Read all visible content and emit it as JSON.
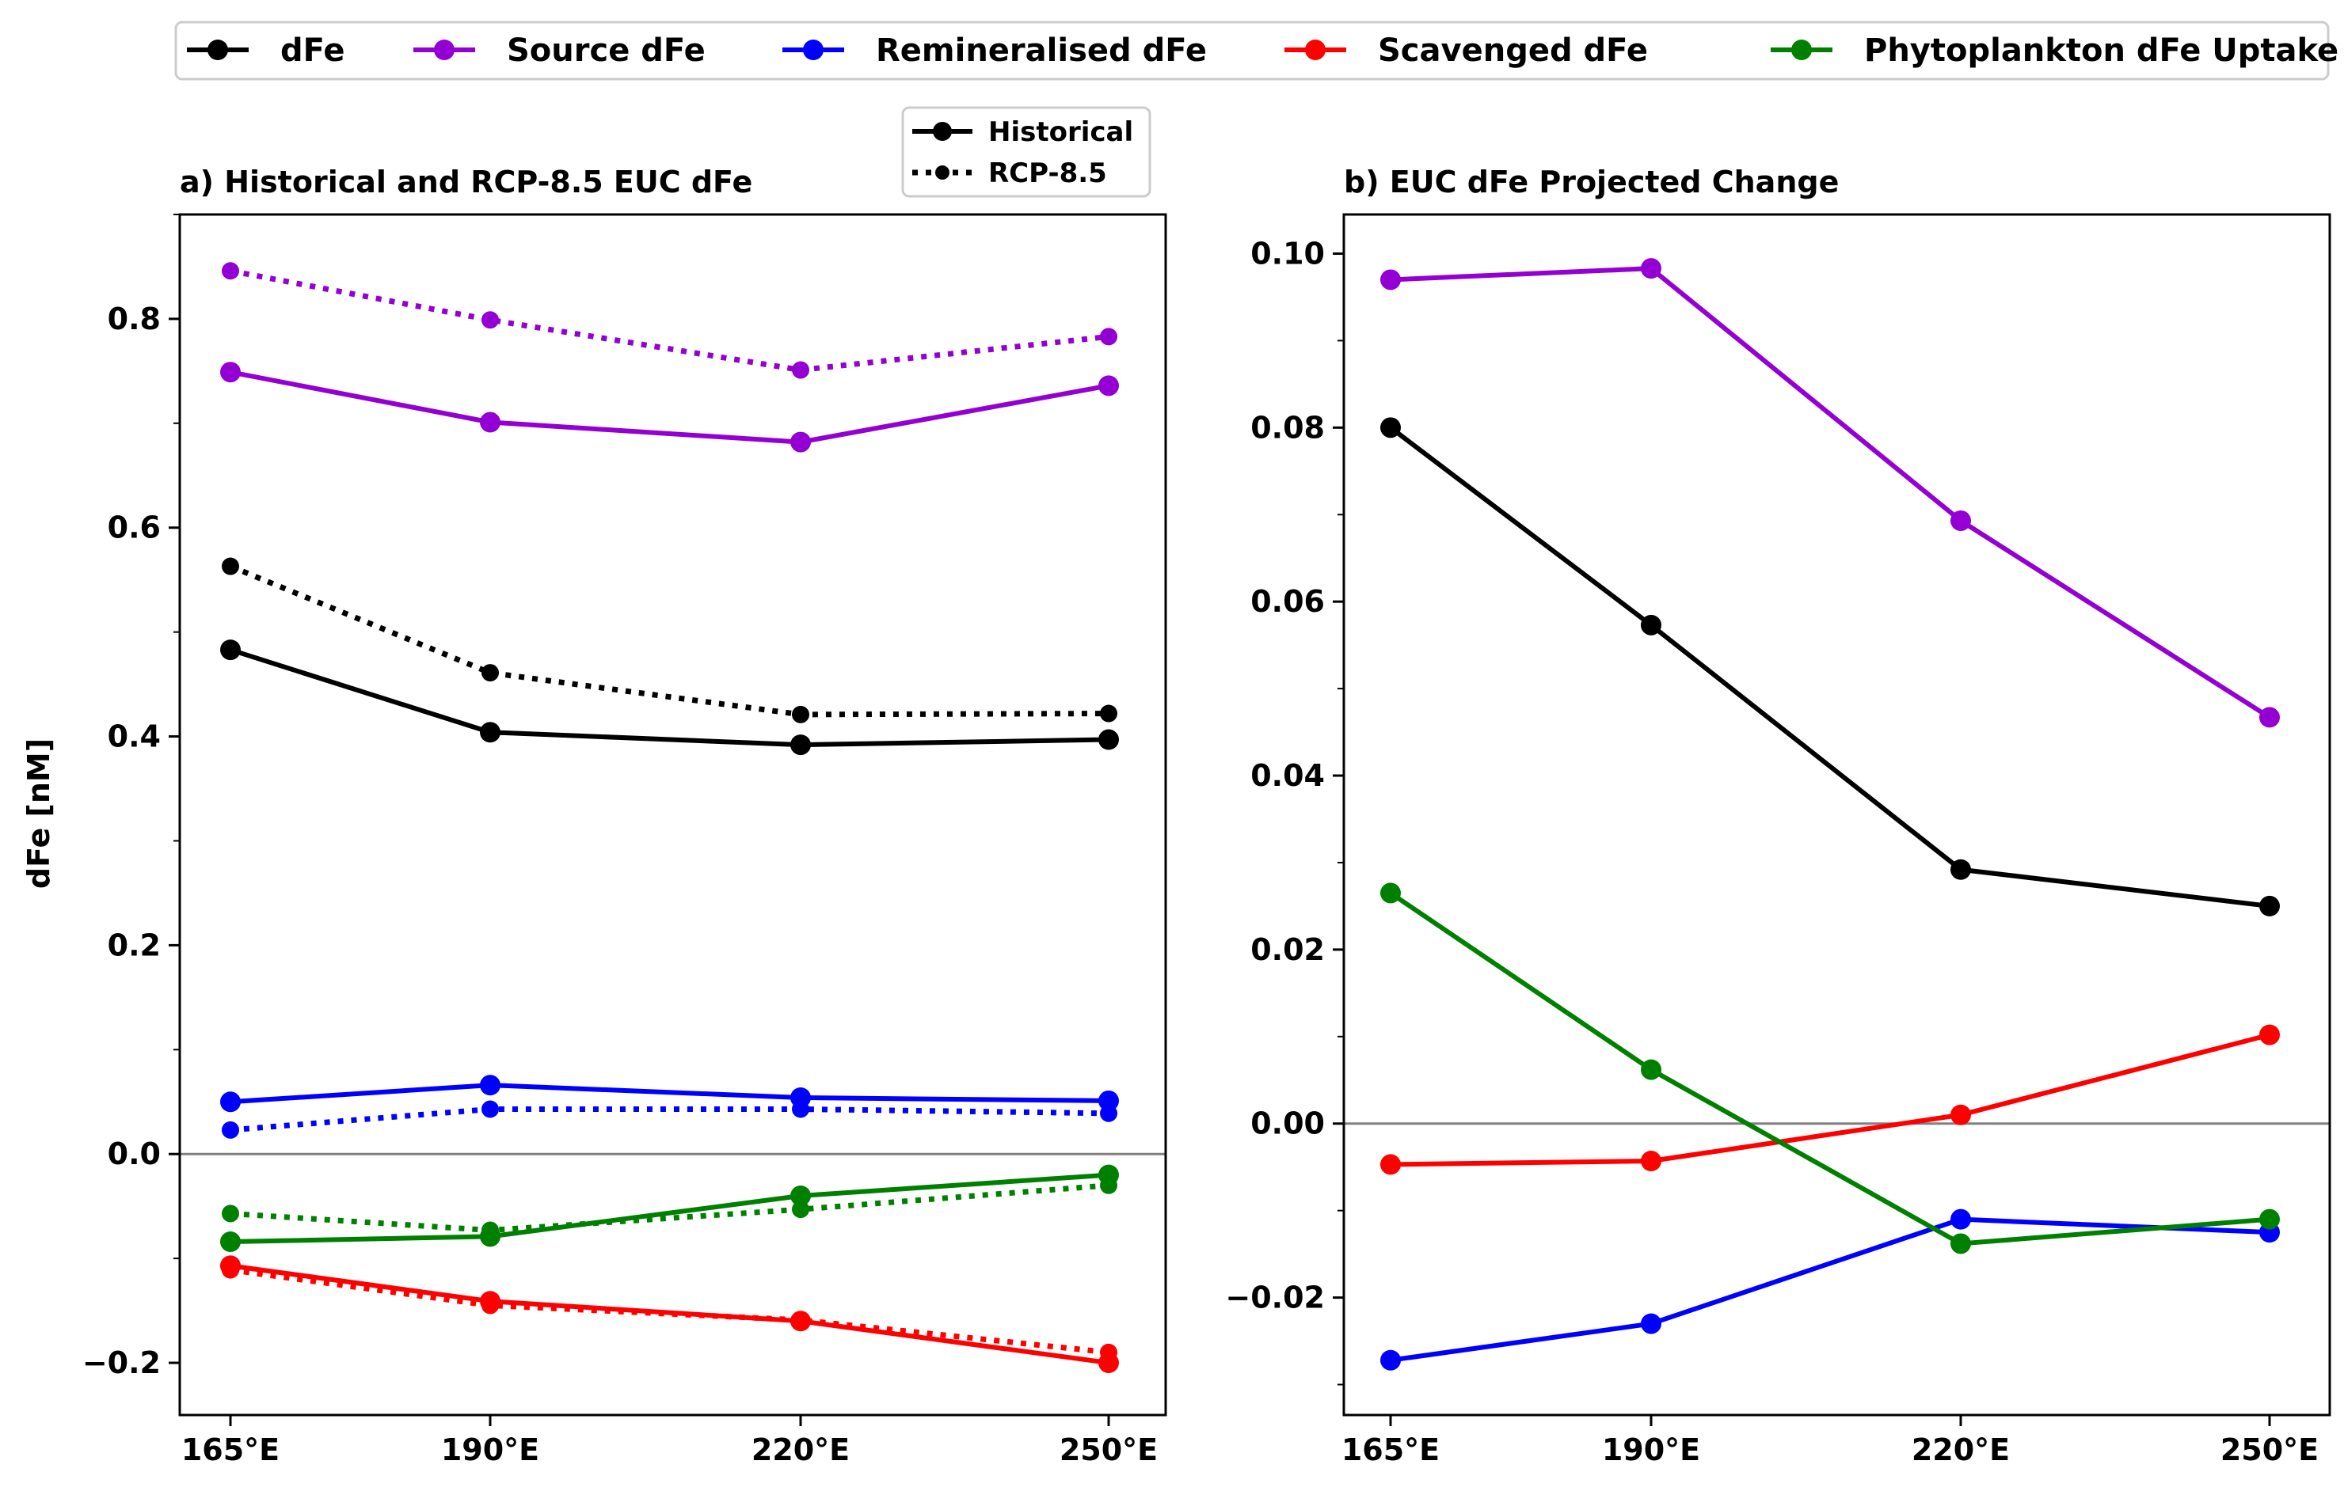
{
  "legend": {
    "items": [
      {
        "label": "dFe",
        "color": "#000000"
      },
      {
        "label": "Source dFe",
        "color": "#9400d3"
      },
      {
        "label": "Remineralised dFe",
        "color": "#0000ff"
      },
      {
        "label": "Scavenged dFe",
        "color": "#ff0000"
      },
      {
        "label": "Phytoplankton dFe Uptake",
        "color": "#008000"
      }
    ]
  },
  "style_legend": {
    "items": [
      {
        "label": "Historical",
        "style": "solid"
      },
      {
        "label": "RCP-8.5",
        "style": "dotted"
      }
    ]
  },
  "chart_data": [
    {
      "type": "line",
      "title": "a) Historical and RCP-8.5 EUC dFe",
      "ylabel": "dFe [nM]",
      "xlabel": "",
      "categories": [
        "165°E",
        "190°E",
        "220°E",
        "250°E"
      ],
      "ylim": [
        -0.25,
        0.9
      ],
      "yticks": [
        -0.2,
        0.0,
        0.2,
        0.4,
        0.6,
        0.8
      ],
      "ytick_labels": [
        "−0.2",
        "0.0",
        "0.2",
        "0.4",
        "0.6",
        "0.8"
      ],
      "zero_line": true,
      "grid": false,
      "series": [
        {
          "name": "dFe",
          "scenario": "Historical",
          "color": "#000000",
          "values": [
            0.483,
            0.404,
            0.392,
            0.397
          ]
        },
        {
          "name": "dFe",
          "scenario": "RCP-8.5",
          "color": "#000000",
          "values": [
            0.563,
            0.461,
            0.421,
            0.422
          ]
        },
        {
          "name": "Source dFe",
          "scenario": "Historical",
          "color": "#9400d3",
          "values": [
            0.749,
            0.701,
            0.682,
            0.736
          ]
        },
        {
          "name": "Source dFe",
          "scenario": "RCP-8.5",
          "color": "#9400d3",
          "values": [
            0.846,
            0.799,
            0.751,
            0.783
          ]
        },
        {
          "name": "Remineralised dFe",
          "scenario": "Historical",
          "color": "#0000ff",
          "values": [
            0.05,
            0.066,
            0.054,
            0.051
          ]
        },
        {
          "name": "Remineralised dFe",
          "scenario": "RCP-8.5",
          "color": "#0000ff",
          "values": [
            0.023,
            0.043,
            0.043,
            0.039
          ]
        },
        {
          "name": "Scavenged dFe",
          "scenario": "Historical",
          "color": "#ff0000",
          "values": [
            -0.107,
            -0.141,
            -0.16,
            -0.2
          ]
        },
        {
          "name": "Scavenged dFe",
          "scenario": "RCP-8.5",
          "color": "#ff0000",
          "values": [
            -0.111,
            -0.145,
            -0.159,
            -0.19
          ]
        },
        {
          "name": "Phytoplankton dFe Uptake",
          "scenario": "Historical",
          "color": "#008000",
          "values": [
            -0.084,
            -0.079,
            -0.04,
            -0.02
          ]
        },
        {
          "name": "Phytoplankton dFe Uptake",
          "scenario": "RCP-8.5",
          "color": "#008000",
          "values": [
            -0.057,
            -0.073,
            -0.053,
            -0.03
          ]
        }
      ]
    },
    {
      "type": "line",
      "title": "b) EUC dFe Projected Change",
      "ylabel": "",
      "xlabel": "",
      "categories": [
        "165°E",
        "190°E",
        "220°E",
        "250°E"
      ],
      "ylim": [
        -0.0335,
        0.1045
      ],
      "yticks": [
        -0.02,
        0.0,
        0.02,
        0.04,
        0.06,
        0.08,
        0.1
      ],
      "ytick_labels": [
        "−0.02",
        "0.00",
        "0.02",
        "0.04",
        "0.06",
        "0.08",
        "0.10"
      ],
      "zero_line": true,
      "grid": false,
      "series": [
        {
          "name": "dFe",
          "color": "#000000",
          "values": [
            0.08,
            0.0573,
            0.0292,
            0.025
          ]
        },
        {
          "name": "Source dFe",
          "color": "#9400d3",
          "values": [
            0.097,
            0.0983,
            0.0693,
            0.0467
          ]
        },
        {
          "name": "Remineralised dFe",
          "color": "#0000ff",
          "values": [
            -0.0272,
            -0.023,
            -0.011,
            -0.0125
          ]
        },
        {
          "name": "Scavenged dFe",
          "color": "#ff0000",
          "values": [
            -0.0047,
            -0.0043,
            0.001,
            0.0102
          ]
        },
        {
          "name": "Phytoplankton dFe Uptake",
          "color": "#008000",
          "values": [
            0.0265,
            0.0062,
            -0.0138,
            -0.011
          ]
        }
      ]
    }
  ]
}
